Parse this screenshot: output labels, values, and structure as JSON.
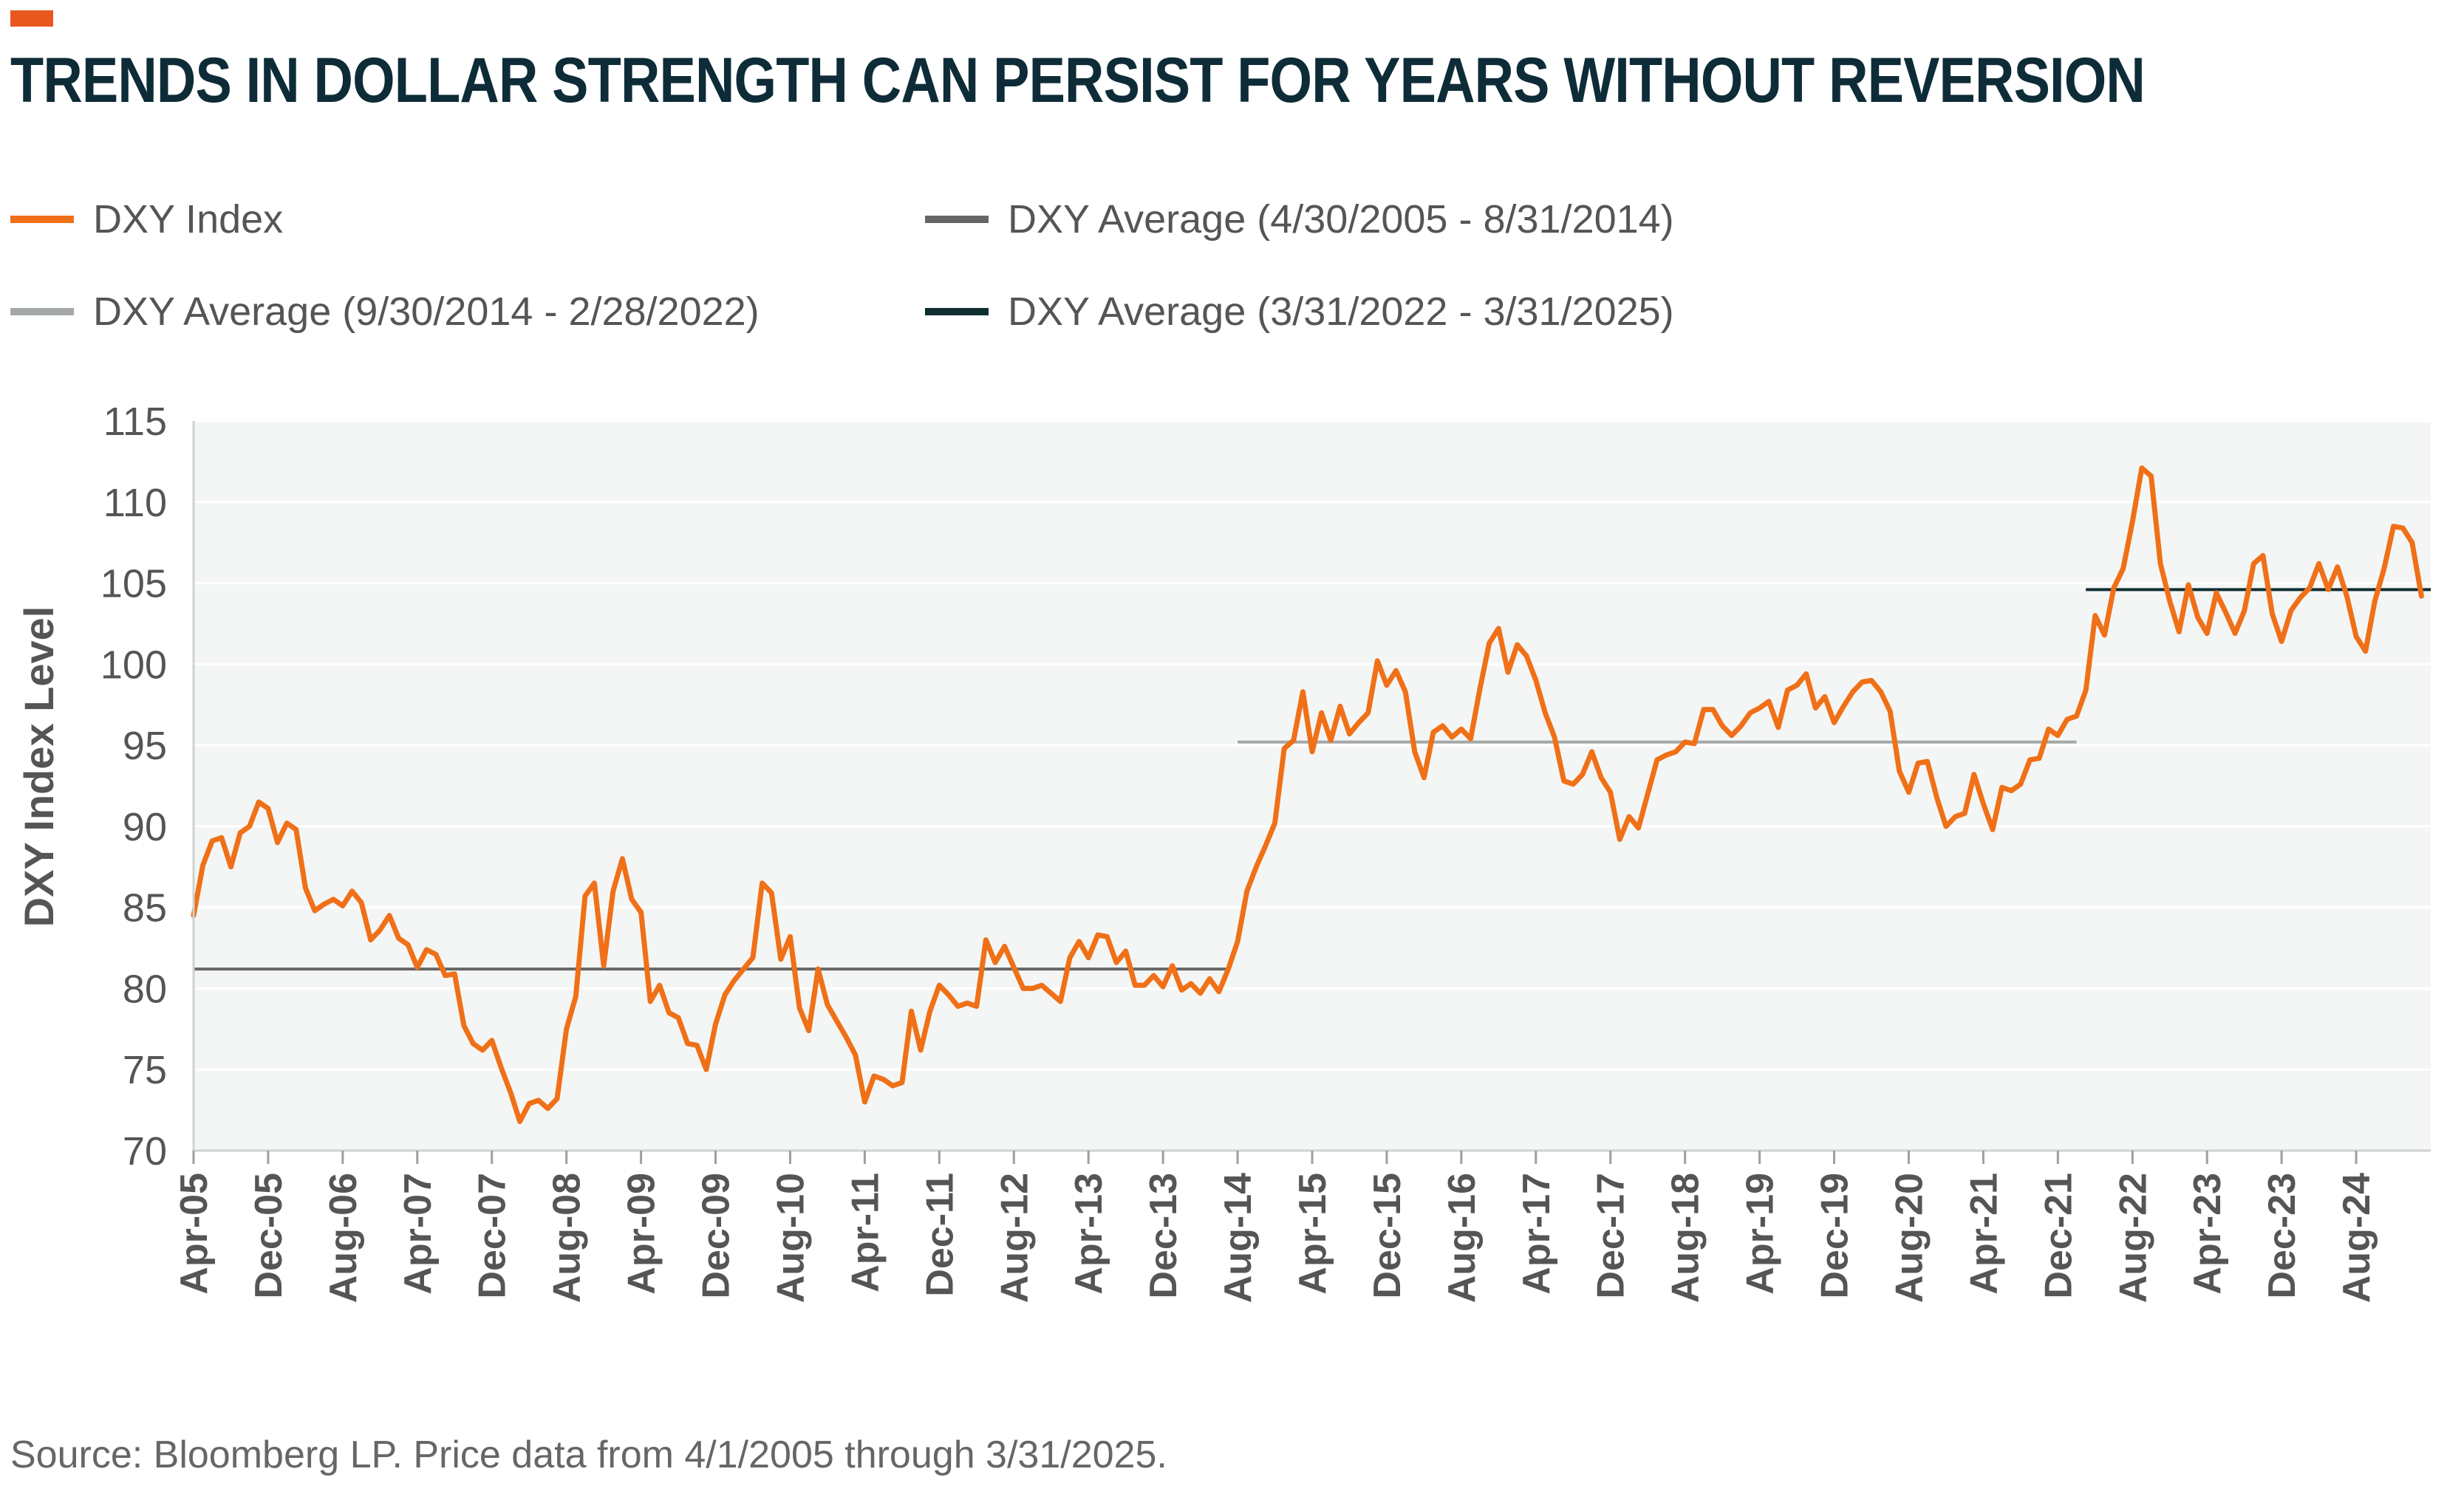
{
  "title": "TRENDS IN DOLLAR STRENGTH CAN PERSIST FOR YEARS WITHOUT REVERSION",
  "colors": {
    "accent": "#e8581f",
    "title": "#0e2c38",
    "series_index": "#f07018",
    "avg_1": "#666666",
    "avg_2": "#a4a9a8",
    "avg_3": "#0f2f33",
    "plot_bg": "#f4f6f5",
    "grid": "#ffffff"
  },
  "legend": [
    {
      "label": "DXY Index",
      "color": "#f07018"
    },
    {
      "label": "DXY Average (4/30/2005 - 8/31/2014)",
      "color": "#666666"
    },
    {
      "label": "DXY Average (9/30/2014 - 2/28/2022)",
      "color": "#a4a9a8"
    },
    {
      "label": "DXY Average (3/31/2022 - 3/31/2025)",
      "color": "#0f2f33"
    }
  ],
  "source": "Source: Bloomberg LP. Price data from 4/1/2005 through 3/31/2025.",
  "chart_data": {
    "type": "line",
    "title": "TRENDS IN DOLLAR STRENGTH CAN PERSIST FOR YEARS WITHOUT REVERSION",
    "xlabel": "",
    "ylabel": "DXY Index Level",
    "ylim": [
      70,
      115
    ],
    "yticks": [
      70,
      75,
      80,
      85,
      90,
      95,
      100,
      105,
      110,
      115
    ],
    "x_start": "Apr-05",
    "x_count": 241,
    "x_tick_labels": [
      "Apr-05",
      "Dec-05",
      "Aug-06",
      "Apr-07",
      "Dec-07",
      "Aug-08",
      "Apr-09",
      "Dec-09",
      "Aug-10",
      "Apr-11",
      "Dec-11",
      "Aug-12",
      "Apr-13",
      "Dec-13",
      "Aug-14",
      "Apr-15",
      "Dec-15",
      "Aug-16",
      "Apr-17",
      "Dec-17",
      "Aug-18",
      "Apr-19",
      "Dec-19",
      "Aug-20",
      "Apr-21",
      "Dec-21",
      "Aug-22",
      "Apr-23",
      "Dec-23",
      "Aug-24"
    ],
    "x_tick_step": 8,
    "grid": true,
    "series": [
      {
        "name": "DXY Index",
        "anchors": [
          [
            0,
            84.5
          ],
          [
            1,
            87.6
          ],
          [
            2,
            89.1
          ],
          [
            3,
            89.3
          ],
          [
            4,
            87.5
          ],
          [
            5,
            89.6
          ],
          [
            6,
            90.0
          ],
          [
            7,
            91.5
          ],
          [
            8,
            91.1
          ],
          [
            9,
            89.0
          ],
          [
            10,
            90.2
          ],
          [
            11,
            89.8
          ],
          [
            12,
            86.2
          ],
          [
            13,
            84.8
          ],
          [
            14,
            85.2
          ],
          [
            15,
            85.5
          ],
          [
            16,
            85.1
          ],
          [
            17,
            86.0
          ],
          [
            18,
            85.3
          ],
          [
            19,
            83.0
          ],
          [
            20,
            83.6
          ],
          [
            21,
            84.5
          ],
          [
            22,
            83.1
          ],
          [
            23,
            82.7
          ],
          [
            24,
            81.3
          ],
          [
            25,
            82.4
          ],
          [
            26,
            82.1
          ],
          [
            27,
            80.8
          ],
          [
            28,
            80.9
          ],
          [
            29,
            77.7
          ],
          [
            30,
            76.6
          ],
          [
            31,
            76.2
          ],
          [
            32,
            76.8
          ],
          [
            33,
            75.1
          ],
          [
            34,
            73.6
          ],
          [
            35,
            71.8
          ],
          [
            36,
            72.9
          ],
          [
            37,
            73.1
          ],
          [
            38,
            72.6
          ],
          [
            39,
            73.2
          ],
          [
            40,
            77.5
          ],
          [
            41,
            79.5
          ],
          [
            42,
            85.7
          ],
          [
            43,
            86.5
          ],
          [
            44,
            81.4
          ],
          [
            45,
            86.0
          ],
          [
            46,
            88.0
          ],
          [
            47,
            85.5
          ],
          [
            48,
            84.7
          ],
          [
            49,
            79.2
          ],
          [
            50,
            80.2
          ],
          [
            51,
            78.5
          ],
          [
            52,
            78.2
          ],
          [
            53,
            76.6
          ],
          [
            54,
            76.5
          ],
          [
            55,
            75.0
          ],
          [
            56,
            77.8
          ],
          [
            57,
            79.6
          ],
          [
            58,
            80.5
          ],
          [
            59,
            81.2
          ],
          [
            60,
            81.9
          ],
          [
            61,
            86.5
          ],
          [
            62,
            85.9
          ],
          [
            63,
            81.8
          ],
          [
            64,
            83.2
          ],
          [
            65,
            78.8
          ],
          [
            66,
            77.4
          ],
          [
            67,
            81.2
          ],
          [
            68,
            79.0
          ],
          [
            69,
            78.0
          ],
          [
            70,
            77.0
          ],
          [
            71,
            75.9
          ],
          [
            72,
            73.0
          ],
          [
            73,
            74.6
          ],
          [
            74,
            74.4
          ],
          [
            75,
            74.0
          ],
          [
            76,
            74.2
          ],
          [
            77,
            78.6
          ],
          [
            78,
            76.2
          ],
          [
            79,
            78.6
          ],
          [
            80,
            80.2
          ],
          [
            81,
            79.6
          ],
          [
            82,
            78.9
          ],
          [
            83,
            79.1
          ],
          [
            84,
            78.9
          ],
          [
            85,
            83.0
          ],
          [
            86,
            81.6
          ],
          [
            87,
            82.6
          ],
          [
            88,
            81.3
          ],
          [
            89,
            80.0
          ],
          [
            90,
            80.0
          ],
          [
            91,
            80.2
          ],
          [
            92,
            79.7
          ],
          [
            93,
            79.2
          ],
          [
            94,
            81.9
          ],
          [
            95,
            82.9
          ],
          [
            96,
            81.9
          ],
          [
            97,
            83.3
          ],
          [
            98,
            83.2
          ],
          [
            99,
            81.6
          ],
          [
            100,
            82.3
          ],
          [
            101,
            80.2
          ],
          [
            102,
            80.2
          ],
          [
            103,
            80.8
          ],
          [
            104,
            80.1
          ],
          [
            105,
            81.4
          ],
          [
            106,
            79.9
          ],
          [
            107,
            80.3
          ],
          [
            108,
            79.7
          ],
          [
            109,
            80.6
          ],
          [
            110,
            79.8
          ],
          [
            111,
            81.2
          ],
          [
            112,
            82.9
          ],
          [
            113,
            86.0
          ],
          [
            114,
            87.5
          ],
          [
            115,
            88.8
          ],
          [
            116,
            90.2
          ],
          [
            117,
            94.8
          ],
          [
            118,
            95.3
          ],
          [
            119,
            98.3
          ],
          [
            120,
            94.6
          ],
          [
            121,
            97.0
          ],
          [
            122,
            95.3
          ],
          [
            123,
            97.4
          ],
          [
            124,
            95.7
          ],
          [
            125,
            96.4
          ],
          [
            126,
            97.0
          ],
          [
            127,
            100.2
          ],
          [
            128,
            98.7
          ],
          [
            129,
            99.6
          ],
          [
            130,
            98.3
          ],
          [
            131,
            94.6
          ],
          [
            132,
            93.0
          ],
          [
            133,
            95.8
          ],
          [
            134,
            96.2
          ],
          [
            135,
            95.5
          ],
          [
            136,
            96.0
          ],
          [
            137,
            95.4
          ],
          [
            138,
            98.5
          ],
          [
            139,
            101.3
          ],
          [
            140,
            102.2
          ],
          [
            141,
            99.5
          ],
          [
            142,
            101.2
          ],
          [
            143,
            100.5
          ],
          [
            144,
            99.0
          ],
          [
            145,
            97.0
          ],
          [
            146,
            95.5
          ],
          [
            147,
            92.8
          ],
          [
            148,
            92.6
          ],
          [
            149,
            93.2
          ],
          [
            150,
            94.6
          ],
          [
            151,
            93.0
          ],
          [
            152,
            92.1
          ],
          [
            153,
            89.2
          ],
          [
            154,
            90.6
          ],
          [
            155,
            89.9
          ],
          [
            156,
            92.0
          ],
          [
            157,
            94.1
          ],
          [
            158,
            94.4
          ],
          [
            159,
            94.6
          ],
          [
            160,
            95.2
          ],
          [
            161,
            95.1
          ],
          [
            162,
            97.2
          ],
          [
            163,
            97.2
          ],
          [
            164,
            96.2
          ],
          [
            165,
            95.6
          ],
          [
            166,
            96.2
          ],
          [
            167,
            97.0
          ],
          [
            168,
            97.3
          ],
          [
            169,
            97.7
          ],
          [
            170,
            96.1
          ],
          [
            171,
            98.4
          ],
          [
            172,
            98.7
          ],
          [
            173,
            99.4
          ],
          [
            174,
            97.3
          ],
          [
            175,
            98.0
          ],
          [
            176,
            96.4
          ],
          [
            177,
            97.4
          ],
          [
            178,
            98.3
          ],
          [
            179,
            98.9
          ],
          [
            180,
            99.0
          ],
          [
            181,
            98.3
          ],
          [
            182,
            97.1
          ],
          [
            183,
            93.4
          ],
          [
            184,
            92.1
          ],
          [
            185,
            93.9
          ],
          [
            186,
            94.0
          ],
          [
            187,
            91.8
          ],
          [
            188,
            90.0
          ],
          [
            189,
            90.6
          ],
          [
            190,
            90.8
          ],
          [
            191,
            93.2
          ],
          [
            192,
            91.4
          ],
          [
            193,
            89.8
          ],
          [
            194,
            92.4
          ],
          [
            195,
            92.2
          ],
          [
            196,
            92.6
          ],
          [
            197,
            94.1
          ],
          [
            198,
            94.2
          ],
          [
            199,
            96.0
          ],
          [
            200,
            95.6
          ],
          [
            201,
            96.6
          ],
          [
            202,
            96.8
          ],
          [
            203,
            98.4
          ],
          [
            204,
            103.0
          ],
          [
            205,
            101.8
          ],
          [
            206,
            104.7
          ],
          [
            207,
            105.9
          ],
          [
            208,
            108.8
          ],
          [
            209,
            112.1
          ],
          [
            210,
            111.6
          ],
          [
            211,
            106.2
          ],
          [
            212,
            103.9
          ],
          [
            213,
            102.0
          ],
          [
            214,
            104.9
          ],
          [
            215,
            102.9
          ],
          [
            216,
            101.9
          ],
          [
            217,
            104.4
          ],
          [
            218,
            103.2
          ],
          [
            219,
            101.9
          ],
          [
            220,
            103.3
          ],
          [
            221,
            106.2
          ],
          [
            222,
            106.7
          ],
          [
            223,
            103.1
          ],
          [
            224,
            101.4
          ],
          [
            225,
            103.3
          ],
          [
            226,
            104.1
          ],
          [
            227,
            104.7
          ],
          [
            228,
            106.2
          ],
          [
            229,
            104.6
          ],
          [
            230,
            106.0
          ],
          [
            231,
            104.2
          ],
          [
            232,
            101.7
          ],
          [
            233,
            100.8
          ],
          [
            234,
            103.9
          ],
          [
            235,
            105.9
          ],
          [
            236,
            108.5
          ],
          [
            237,
            108.4
          ],
          [
            238,
            107.5
          ],
          [
            239,
            104.2
          ]
        ]
      },
      {
        "name": "DXY Average (4/30/2005 - 8/31/2014)",
        "value": 81.2,
        "x_range": [
          0,
          111
        ]
      },
      {
        "name": "DXY Average (9/30/2014 - 2/28/2022)",
        "value": 95.2,
        "x_range": [
          112,
          202
        ]
      },
      {
        "name": "DXY Average (3/31/2022 - 3/31/2025)",
        "value": 104.6,
        "x_range": [
          203,
          240
        ]
      }
    ]
  }
}
